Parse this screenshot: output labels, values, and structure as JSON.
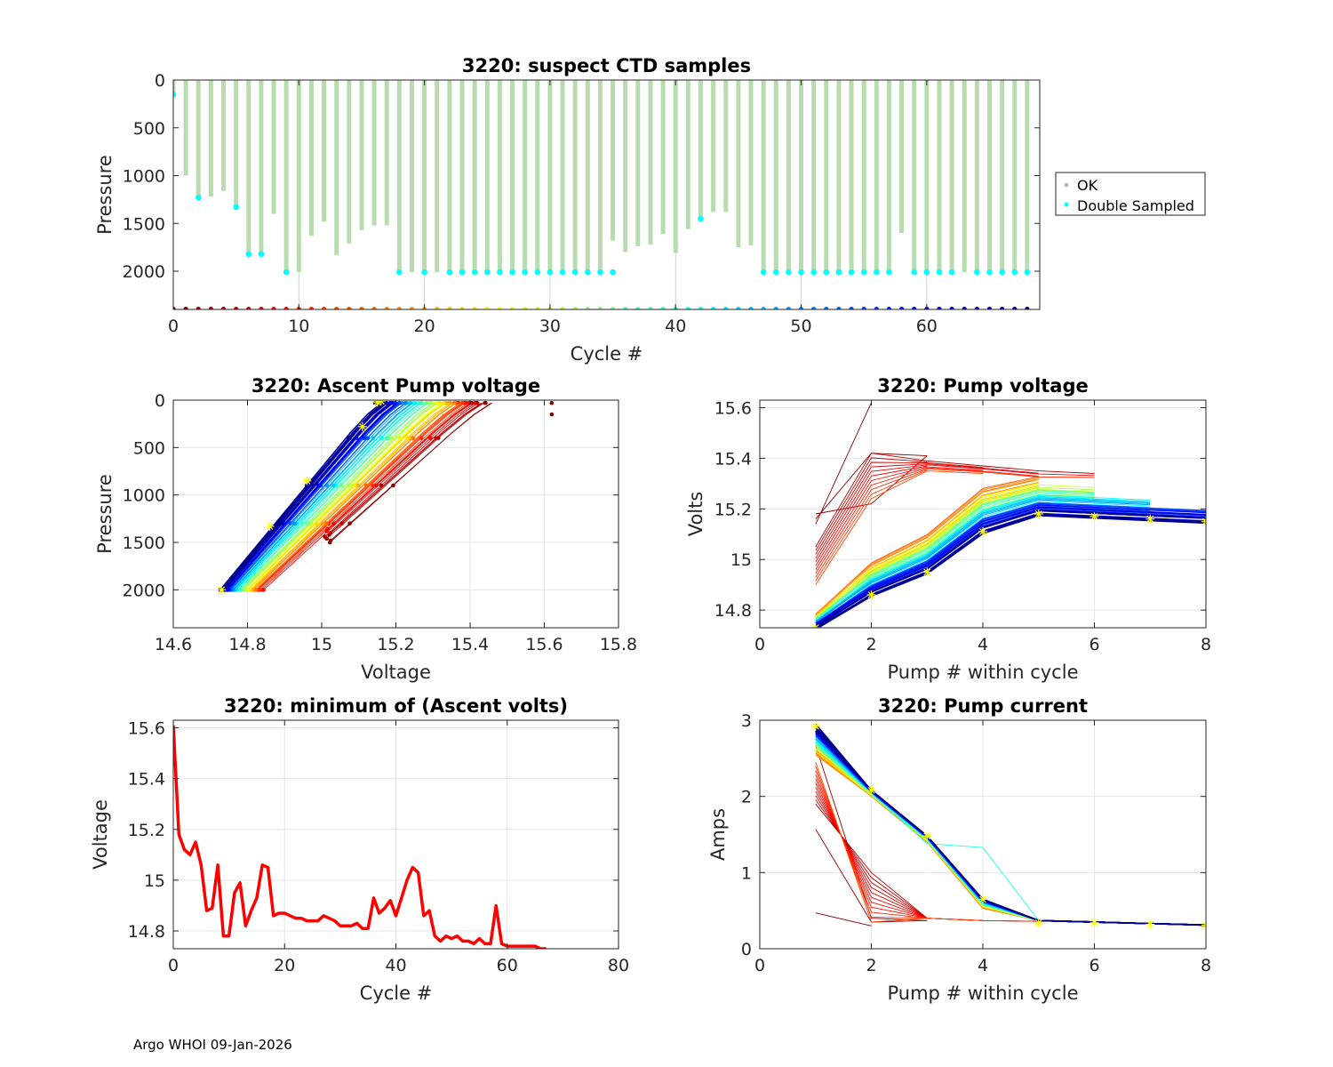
{
  "footer": "Argo WHOI 09-Jan-2026",
  "colors": {
    "ok": "#c8e0c0",
    "ok_line": "#b9dbb0",
    "double": "#00ffff",
    "marker": "#ffff00",
    "red": "#ff0000",
    "grid": "#e6e6e6"
  },
  "chart_data": [
    {
      "id": "suspect-ctd",
      "type": "bar",
      "title": "3220: suspect CTD samples",
      "xlabel": "Cycle #",
      "ylabel": "Pressure",
      "xlim": [
        0,
        69
      ],
      "ylim": [
        0,
        2400
      ],
      "yreversed": true,
      "xticks": [
        0,
        10,
        20,
        30,
        40,
        50,
        60
      ],
      "yticks": [
        0,
        500,
        1000,
        1500,
        2000
      ],
      "legend": {
        "placement": "outside-right",
        "entries": [
          "OK",
          "Double Sampled"
        ]
      },
      "cycles": [
        0,
        1,
        2,
        3,
        4,
        5,
        6,
        7,
        8,
        9,
        10,
        11,
        12,
        13,
        14,
        15,
        16,
        17,
        18,
        19,
        20,
        21,
        22,
        23,
        24,
        25,
        26,
        27,
        28,
        29,
        30,
        31,
        32,
        33,
        34,
        35,
        36,
        37,
        38,
        39,
        40,
        41,
        42,
        43,
        44,
        45,
        46,
        47,
        48,
        49,
        50,
        51,
        52,
        53,
        54,
        55,
        56,
        57,
        58,
        59,
        60,
        61,
        62,
        63,
        64,
        65,
        66,
        67,
        68
      ],
      "max_pressure": [
        150,
        1000,
        1230,
        1220,
        1160,
        1330,
        1810,
        1820,
        1400,
        2010,
        2010,
        1630,
        1480,
        1830,
        1710,
        1570,
        1520,
        1520,
        2010,
        2010,
        2010,
        2010,
        2010,
        2010,
        2010,
        2010,
        2010,
        2010,
        2010,
        2010,
        2010,
        2010,
        2010,
        2010,
        2010,
        1680,
        1800,
        1740,
        1720,
        1610,
        1810,
        1560,
        1450,
        1380,
        1380,
        1750,
        1730,
        2010,
        2010,
        2010,
        2010,
        2010,
        2010,
        2010,
        2010,
        2010,
        2010,
        2010,
        1600,
        2010,
        2010,
        2010,
        2010,
        2010,
        2010,
        2010,
        2010,
        2010,
        2010
      ],
      "double_sampled": [
        [
          0,
          150
        ],
        [
          2,
          1230
        ],
        [
          5,
          1330
        ],
        [
          6,
          1820
        ],
        [
          7,
          1820
        ],
        [
          9,
          2010
        ],
        [
          18,
          2010
        ],
        [
          20,
          2010
        ],
        [
          22,
          2010
        ],
        [
          23,
          2010
        ],
        [
          24,
          2010
        ],
        [
          25,
          2010
        ],
        [
          26,
          2010
        ],
        [
          27,
          2010
        ],
        [
          28,
          2010
        ],
        [
          29,
          2010
        ],
        [
          30,
          2010
        ],
        [
          31,
          2010
        ],
        [
          32,
          2010
        ],
        [
          33,
          2010
        ],
        [
          34,
          2010
        ],
        [
          35,
          2010
        ],
        [
          42,
          1450
        ],
        [
          47,
          2010
        ],
        [
          48,
          2010
        ],
        [
          49,
          2010
        ],
        [
          50,
          2010
        ],
        [
          51,
          2010
        ],
        [
          52,
          2010
        ],
        [
          53,
          2010
        ],
        [
          54,
          2010
        ],
        [
          55,
          2010
        ],
        [
          56,
          2010
        ],
        [
          57,
          2010
        ],
        [
          59,
          2010
        ],
        [
          60,
          2010
        ],
        [
          61,
          2010
        ],
        [
          62,
          2010
        ],
        [
          64,
          2010
        ],
        [
          65,
          2010
        ],
        [
          66,
          2010
        ],
        [
          67,
          2010
        ],
        [
          68,
          2010
        ]
      ],
      "bottom_marker_pressure": 2400
    },
    {
      "id": "ascent-pump-voltage",
      "type": "line",
      "title": "3220: Ascent Pump voltage",
      "xlabel": "Voltage",
      "ylabel": "Pressure",
      "xlim": [
        14.6,
        15.8
      ],
      "ylim": [
        0,
        2400
      ],
      "yreversed": true,
      "xticks": [
        14.6,
        14.8,
        15,
        15.2,
        15.4,
        15.6,
        15.8
      ],
      "xticklabels": [
        "14.6",
        "14.8",
        "15",
        "15.2",
        "15.4",
        "15.6",
        "15.8"
      ],
      "yticks": [
        0,
        500,
        1000,
        1500,
        2000
      ],
      "n_profiles": 68,
      "voltage_at_2000": [
        14.73,
        14.88
      ],
      "voltage_at_surface": [
        15.15,
        15.44
      ],
      "outlier_points": [
        [
          15.62,
          30
        ],
        [
          15.62,
          150
        ]
      ]
    },
    {
      "id": "pump-voltage",
      "type": "line",
      "title": "3220: Pump voltage",
      "xlabel": "Pump # within cycle",
      "ylabel": "Volts",
      "xlim": [
        0,
        8
      ],
      "ylim": [
        14.73,
        15.63
      ],
      "xticks": [
        0,
        2,
        4,
        6,
        8
      ],
      "yticks": [
        14.8,
        15,
        15.2,
        15.4,
        15.6
      ],
      "yticklabels": [
        "14.8",
        "15",
        "15.2",
        "15.4",
        "15.6"
      ],
      "last_cycle_series": {
        "x": [
          1,
          2,
          3,
          4,
          5,
          6,
          7,
          8
        ],
        "y": [
          14.73,
          14.86,
          14.95,
          15.11,
          15.18,
          15.17,
          15.16,
          15.15
        ]
      }
    },
    {
      "id": "min-ascent-volts",
      "type": "line",
      "title": "3220: minimum of (Ascent volts)",
      "xlabel": "Cycle #",
      "ylabel": "Voltage",
      "xlim": [
        0,
        80
      ],
      "ylim": [
        14.73,
        15.63
      ],
      "xticks": [
        0,
        20,
        40,
        60,
        80
      ],
      "yticks": [
        14.8,
        15,
        15.2,
        15.4,
        15.6
      ],
      "yticklabels": [
        "14.8",
        "15",
        "15.2",
        "15.4",
        "15.6"
      ],
      "x": [
        0,
        1,
        2,
        3,
        4,
        5,
        6,
        7,
        8,
        9,
        10,
        11,
        12,
        13,
        14,
        15,
        16,
        17,
        18,
        19,
        20,
        21,
        22,
        23,
        24,
        25,
        26,
        27,
        28,
        29,
        30,
        31,
        32,
        33,
        34,
        35,
        36,
        37,
        38,
        39,
        40,
        41,
        42,
        43,
        44,
        45,
        46,
        47,
        48,
        49,
        50,
        51,
        52,
        53,
        54,
        55,
        56,
        57,
        58,
        59,
        60,
        61,
        62,
        63,
        64,
        65,
        66,
        67
      ],
      "y": [
        15.61,
        15.18,
        15.12,
        15.1,
        15.15,
        15.06,
        14.88,
        14.89,
        15.06,
        14.78,
        14.78,
        14.95,
        14.99,
        14.82,
        14.88,
        14.93,
        15.06,
        15.05,
        14.86,
        14.87,
        14.87,
        14.86,
        14.85,
        14.85,
        14.84,
        14.84,
        14.84,
        14.86,
        14.85,
        14.84,
        14.82,
        14.82,
        14.82,
        14.83,
        14.81,
        14.81,
        14.93,
        14.87,
        14.89,
        14.92,
        14.86,
        14.93,
        15.0,
        15.05,
        15.03,
        14.86,
        14.88,
        14.78,
        14.76,
        14.78,
        14.77,
        14.78,
        14.76,
        14.76,
        14.75,
        14.77,
        14.75,
        14.75,
        14.9,
        14.75,
        14.74,
        14.74,
        14.74,
        14.74,
        14.74,
        14.74,
        14.73,
        14.73
      ]
    },
    {
      "id": "pump-current",
      "type": "line",
      "title": "3220: Pump current",
      "xlabel": "Pump # within cycle",
      "ylabel": "Amps",
      "xlim": [
        0,
        8
      ],
      "ylim": [
        0,
        3
      ],
      "xticks": [
        0,
        2,
        4,
        6,
        8
      ],
      "yticks": [
        0,
        1,
        2,
        3
      ],
      "last_cycle_series": {
        "x": [
          1,
          2,
          3,
          4,
          5,
          6,
          7,
          8
        ],
        "y": [
          2.92,
          2.08,
          1.48,
          0.65,
          0.34,
          0.34,
          0.32,
          0.31
        ]
      }
    }
  ]
}
